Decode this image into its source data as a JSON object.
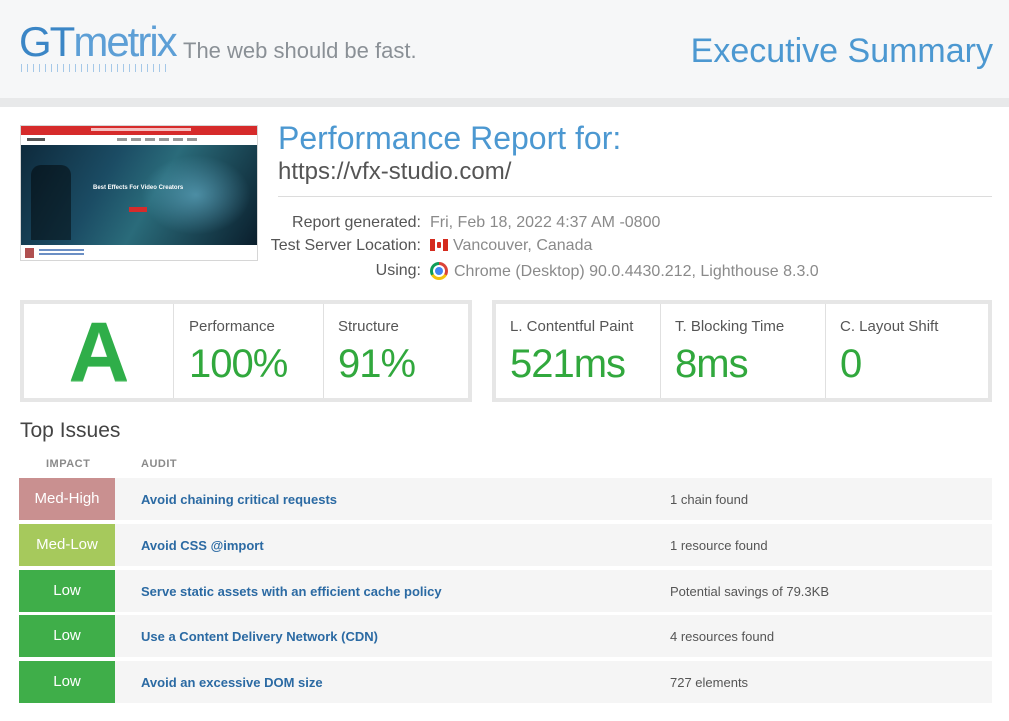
{
  "header": {
    "logo_gt": "GT",
    "logo_metrix": "metrix",
    "tagline": "The web should be fast.",
    "title": "Executive Summary"
  },
  "thumbnail": {
    "headline": "Best Effects For Video Creators"
  },
  "report": {
    "title": "Performance Report for:",
    "url": "https://vfx-studio.com/",
    "generated_label": "Report generated:",
    "generated_value": "Fri, Feb 18, 2022 4:37 AM -0800",
    "location_label": "Test Server Location:",
    "location_value": "Vancouver, Canada",
    "using_label": "Using:",
    "using_value": "Chrome (Desktop) 90.0.4430.212, Lighthouse 8.3.0"
  },
  "grades": {
    "grade": "A",
    "performance_label": "Performance",
    "performance_value": "100%",
    "structure_label": "Structure",
    "structure_value": "91%"
  },
  "web_vitals": {
    "lcp_label": "L. Contentful Paint",
    "lcp_value": "521ms",
    "tbt_label": "T. Blocking Time",
    "tbt_value": "8ms",
    "cls_label": "C. Layout Shift",
    "cls_value": "0"
  },
  "issues": {
    "title": "Top Issues",
    "impact_header": "IMPACT",
    "audit_header": "AUDIT",
    "rows": [
      {
        "impact": "Med-High",
        "color": "#c99090",
        "audit": "Avoid chaining critical requests",
        "result": "1 chain found"
      },
      {
        "impact": "Med-Low",
        "color": "#a6c95c",
        "audit": "Avoid CSS @import",
        "result": "1 resource found"
      },
      {
        "impact": "Low",
        "color": "#3fae49",
        "audit": "Serve static assets with an efficient cache policy",
        "result": "Potential savings of 79.3KB"
      },
      {
        "impact": "Low",
        "color": "#3fae49",
        "audit": "Use a Content Delivery Network (CDN)",
        "result": "4 resources found"
      },
      {
        "impact": "Low",
        "color": "#3fae49",
        "audit": "Avoid an excessive DOM size",
        "result": "727 elements"
      }
    ]
  },
  "colors": {
    "accent_blue": "#4c98d1",
    "grade_green": "#2fae49"
  }
}
